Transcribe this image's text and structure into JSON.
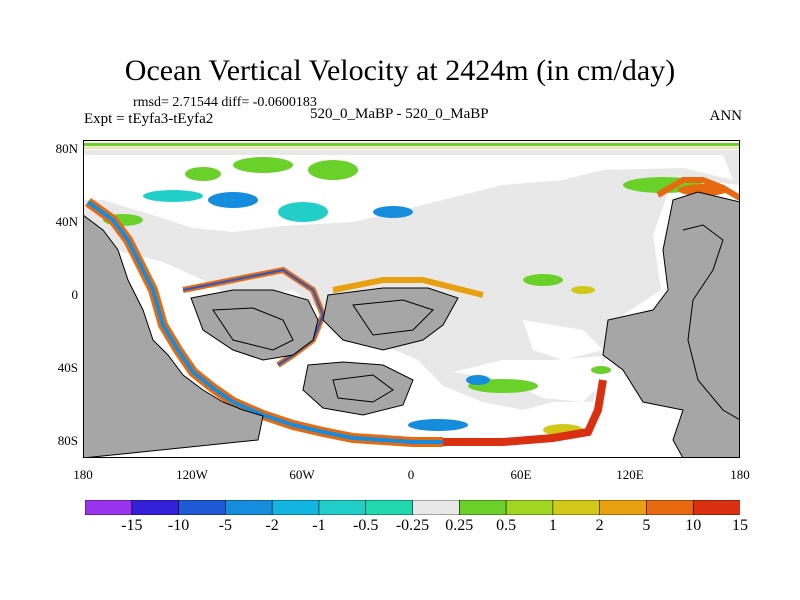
{
  "title": "Ocean Vertical Velocity at 2424m (in cm/day)",
  "stats": "rmsd= 2.71544 diff= -0.0600183",
  "experiment": "Expt = tEyfa3-tEyfa2",
  "case_label": "520_0_MaBP - 520_0_MaBP",
  "season": "ANN",
  "lat_labels": [
    "80N",
    "40N",
    "0",
    "40S",
    "80S"
  ],
  "lon_labels": [
    "180",
    "120W",
    "60W",
    "0",
    "60E",
    "120E",
    "180"
  ],
  "colorbar": {
    "labels": [
      "-15",
      "-10",
      "-5",
      "-2",
      "-1",
      "-0.5",
      "-0.25",
      "0.25",
      "0.5",
      "1",
      "2",
      "5",
      "10",
      "15"
    ],
    "colors": [
      "#9933ee",
      "#3320d8",
      "#1e5ad4",
      "#168cdc",
      "#12b4e0",
      "#22cfc8",
      "#20d7ae",
      "#e8e8e8",
      "#6ad02a",
      "#9ed622",
      "#d2c818",
      "#e8a010",
      "#e86a10",
      "#d83010"
    ]
  },
  "colors": {
    "land": "#a6a6a6",
    "neutral_ocean": "#e8e8e8",
    "coastline": "#000000"
  }
}
